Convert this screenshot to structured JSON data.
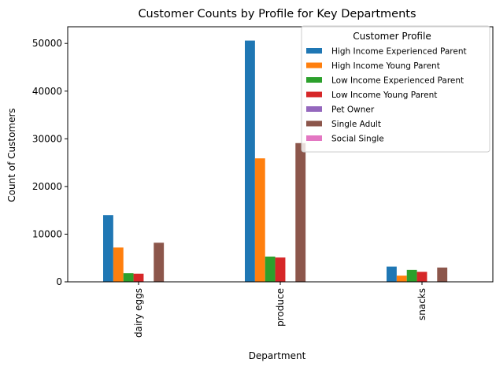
{
  "chart_data": {
    "type": "bar",
    "title": "Customer Counts by Profile for Key Departments",
    "xlabel": "Department",
    "ylabel": "Count of Customers",
    "categories": [
      "dairy eggs",
      "produce",
      "snacks"
    ],
    "ylim": [
      0,
      53500
    ],
    "yticks": [
      0,
      10000,
      20000,
      30000,
      40000,
      50000
    ],
    "ytick_labels": [
      "0",
      "10000",
      "20000",
      "30000",
      "40000",
      "50000"
    ],
    "grid": false,
    "legend": {
      "title": "Customer Profile",
      "placement": "top-right"
    },
    "series": [
      {
        "name": "High Income Experienced Parent",
        "color": "#1f77b4",
        "values": [
          14000,
          50600,
          3200
        ]
      },
      {
        "name": "High Income Young Parent",
        "color": "#ff7f0e",
        "values": [
          7200,
          25900,
          1300
        ]
      },
      {
        "name": "Low Income Experienced Parent",
        "color": "#2ca02c",
        "values": [
          1800,
          5300,
          2500
        ]
      },
      {
        "name": "Low Income Young Parent",
        "color": "#d62728",
        "values": [
          1700,
          5100,
          2100
        ]
      },
      {
        "name": "Pet Owner",
        "color": "#9467bd",
        "values": [
          0,
          0,
          0
        ]
      },
      {
        "name": "Single Adult",
        "color": "#8c564b",
        "values": [
          8200,
          29100,
          3000
        ]
      },
      {
        "name": "Social Single",
        "color": "#e377c2",
        "values": [
          0,
          0,
          0
        ]
      }
    ]
  }
}
